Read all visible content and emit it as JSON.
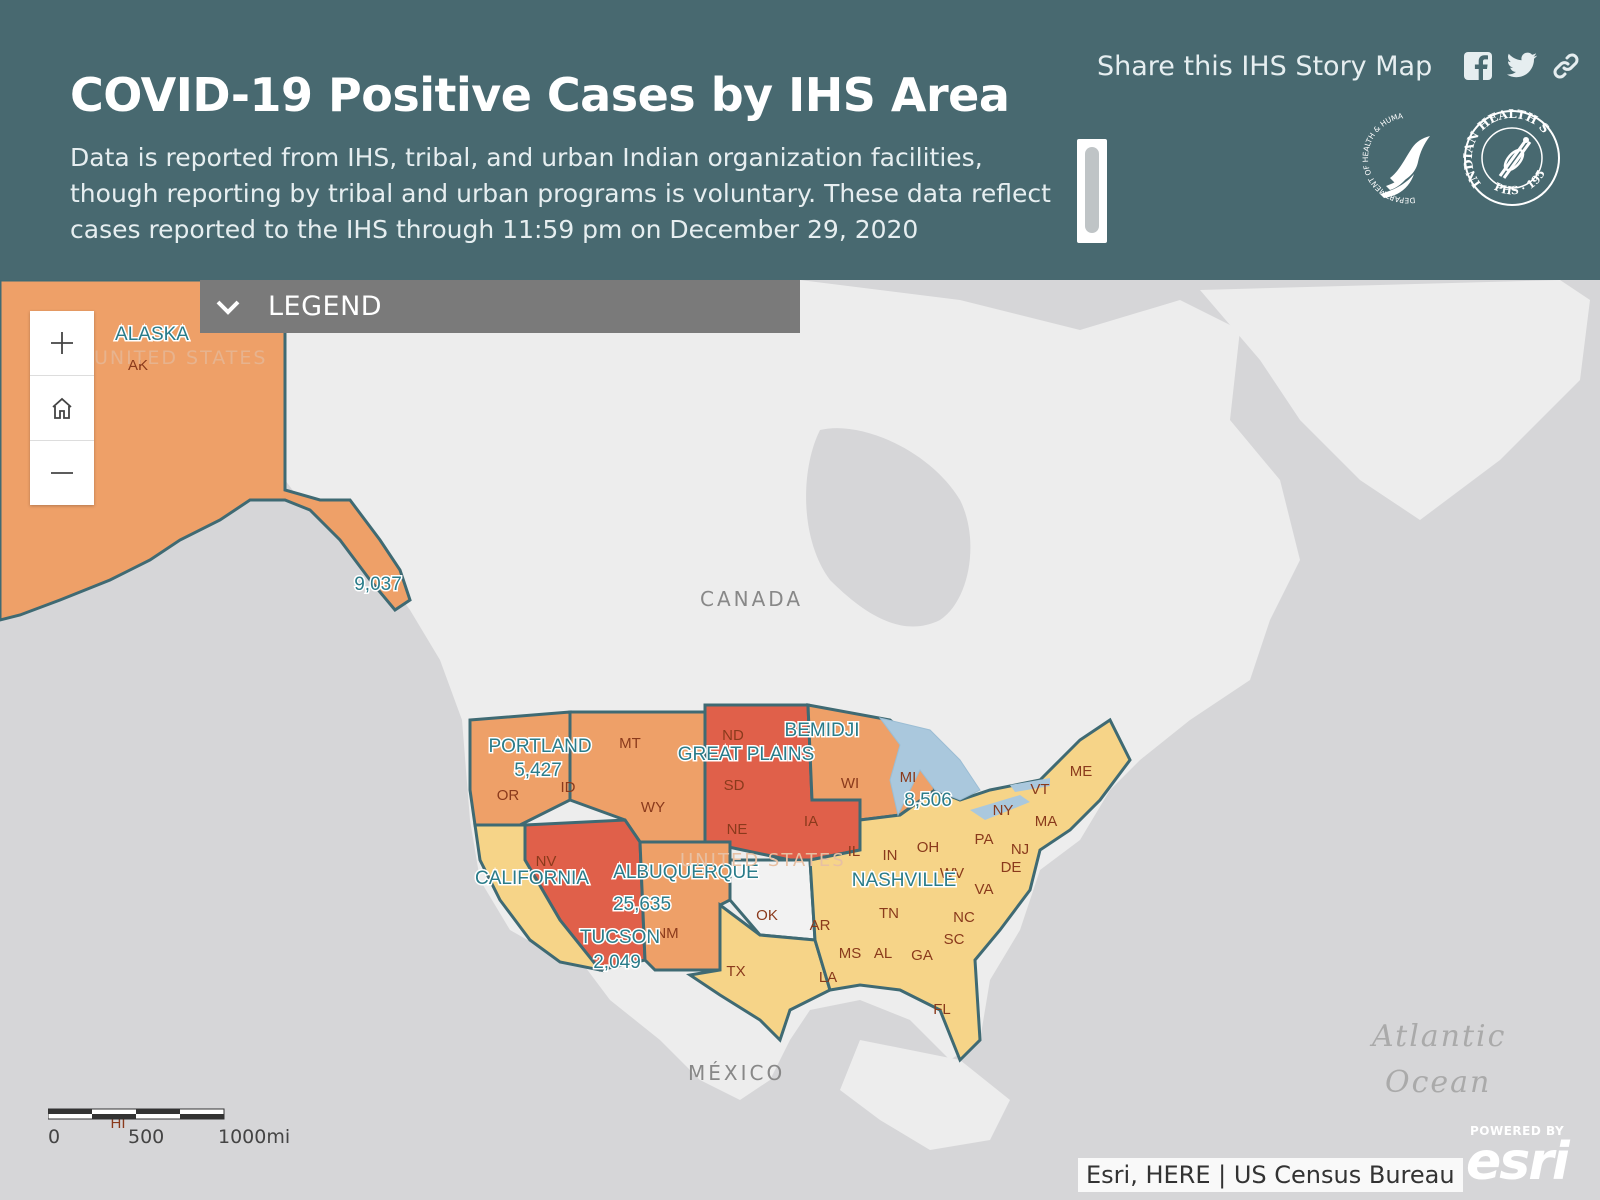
{
  "header": {
    "title": "COVID-19 Positive Cases by IHS Area",
    "description": "Data is reported from IHS, tribal, and urban Indian organization facilities, though reporting by tribal and urban programs is voluntary. These data reflect cases reported to the IHS through 11:59 pm on December 29, 2020",
    "share_label": "Share this IHS Story Map",
    "share_icons": [
      "facebook-icon",
      "twitter-icon",
      "link-icon"
    ],
    "seals": [
      "department-of-health-human-services-seal",
      "indian-health-service-seal"
    ],
    "seal_texts": {
      "hhs": "DEPARTMENT OF HEALTH & HUMAN SERVICES, USA",
      "ihs": "INDIAN HEALTH SERVICE",
      "ihs_sub": "PHS · 1955"
    }
  },
  "legend": {
    "label": "LEGEND",
    "expanded": false
  },
  "map_controls": {
    "zoom_in": "plus-icon",
    "home": "home-icon",
    "zoom_out": "minus-icon"
  },
  "basemap_labels": {
    "canada": "CANADA",
    "mexico": "MÉXICO",
    "united_states_ak": "UNITED STATES",
    "united_states": "UNITED STATES",
    "atlantic_1": "Atlantic",
    "atlantic_2": "Ocean"
  },
  "ihs_areas": [
    {
      "name": "ALASKA",
      "cases": "9,037",
      "level": "medium"
    },
    {
      "name": "PORTLAND",
      "cases": "5,427",
      "level": "medium"
    },
    {
      "name": "BEMIDJI",
      "cases": "8,506",
      "level": "medium"
    },
    {
      "name": "GREAT PLAINS",
      "cases": "",
      "level": "high"
    },
    {
      "name": "CALIFORNIA",
      "cases": "",
      "level": "low"
    },
    {
      "name": "ALBUQUERQUE",
      "cases": "25,635",
      "level": "medium"
    },
    {
      "name": "TUCSON",
      "cases": "2,049",
      "level": "high"
    },
    {
      "name": "NASHVILLE",
      "cases": "",
      "level": "low"
    }
  ],
  "state_labels": [
    "AK",
    "OR",
    "ID",
    "MT",
    "WY",
    "ND",
    "SD",
    "NE",
    "IA",
    "NV",
    "NM",
    "TX",
    "OK",
    "WI",
    "MI",
    "IL",
    "IN",
    "OH",
    "PA",
    "NY",
    "VT",
    "ME",
    "MA",
    "NJ",
    "DE",
    "WV",
    "VA",
    "TN",
    "NC",
    "SC",
    "AR",
    "MS",
    "AL",
    "GA",
    "LA",
    "FL",
    "HI"
  ],
  "colors": {
    "high": "#e0604a",
    "medium": "#eea068",
    "low": "#f6d488",
    "border": "#3f6a73",
    "area_label": "#2a7c8a",
    "water": "#aac8dd"
  },
  "scale_bar": {
    "labels": [
      "0",
      "500",
      "1000mi"
    ]
  },
  "attribution": "Esri, HERE | US Census Bureau",
  "esri_logo": {
    "powered": "POWERED BY",
    "word": "esri"
  }
}
